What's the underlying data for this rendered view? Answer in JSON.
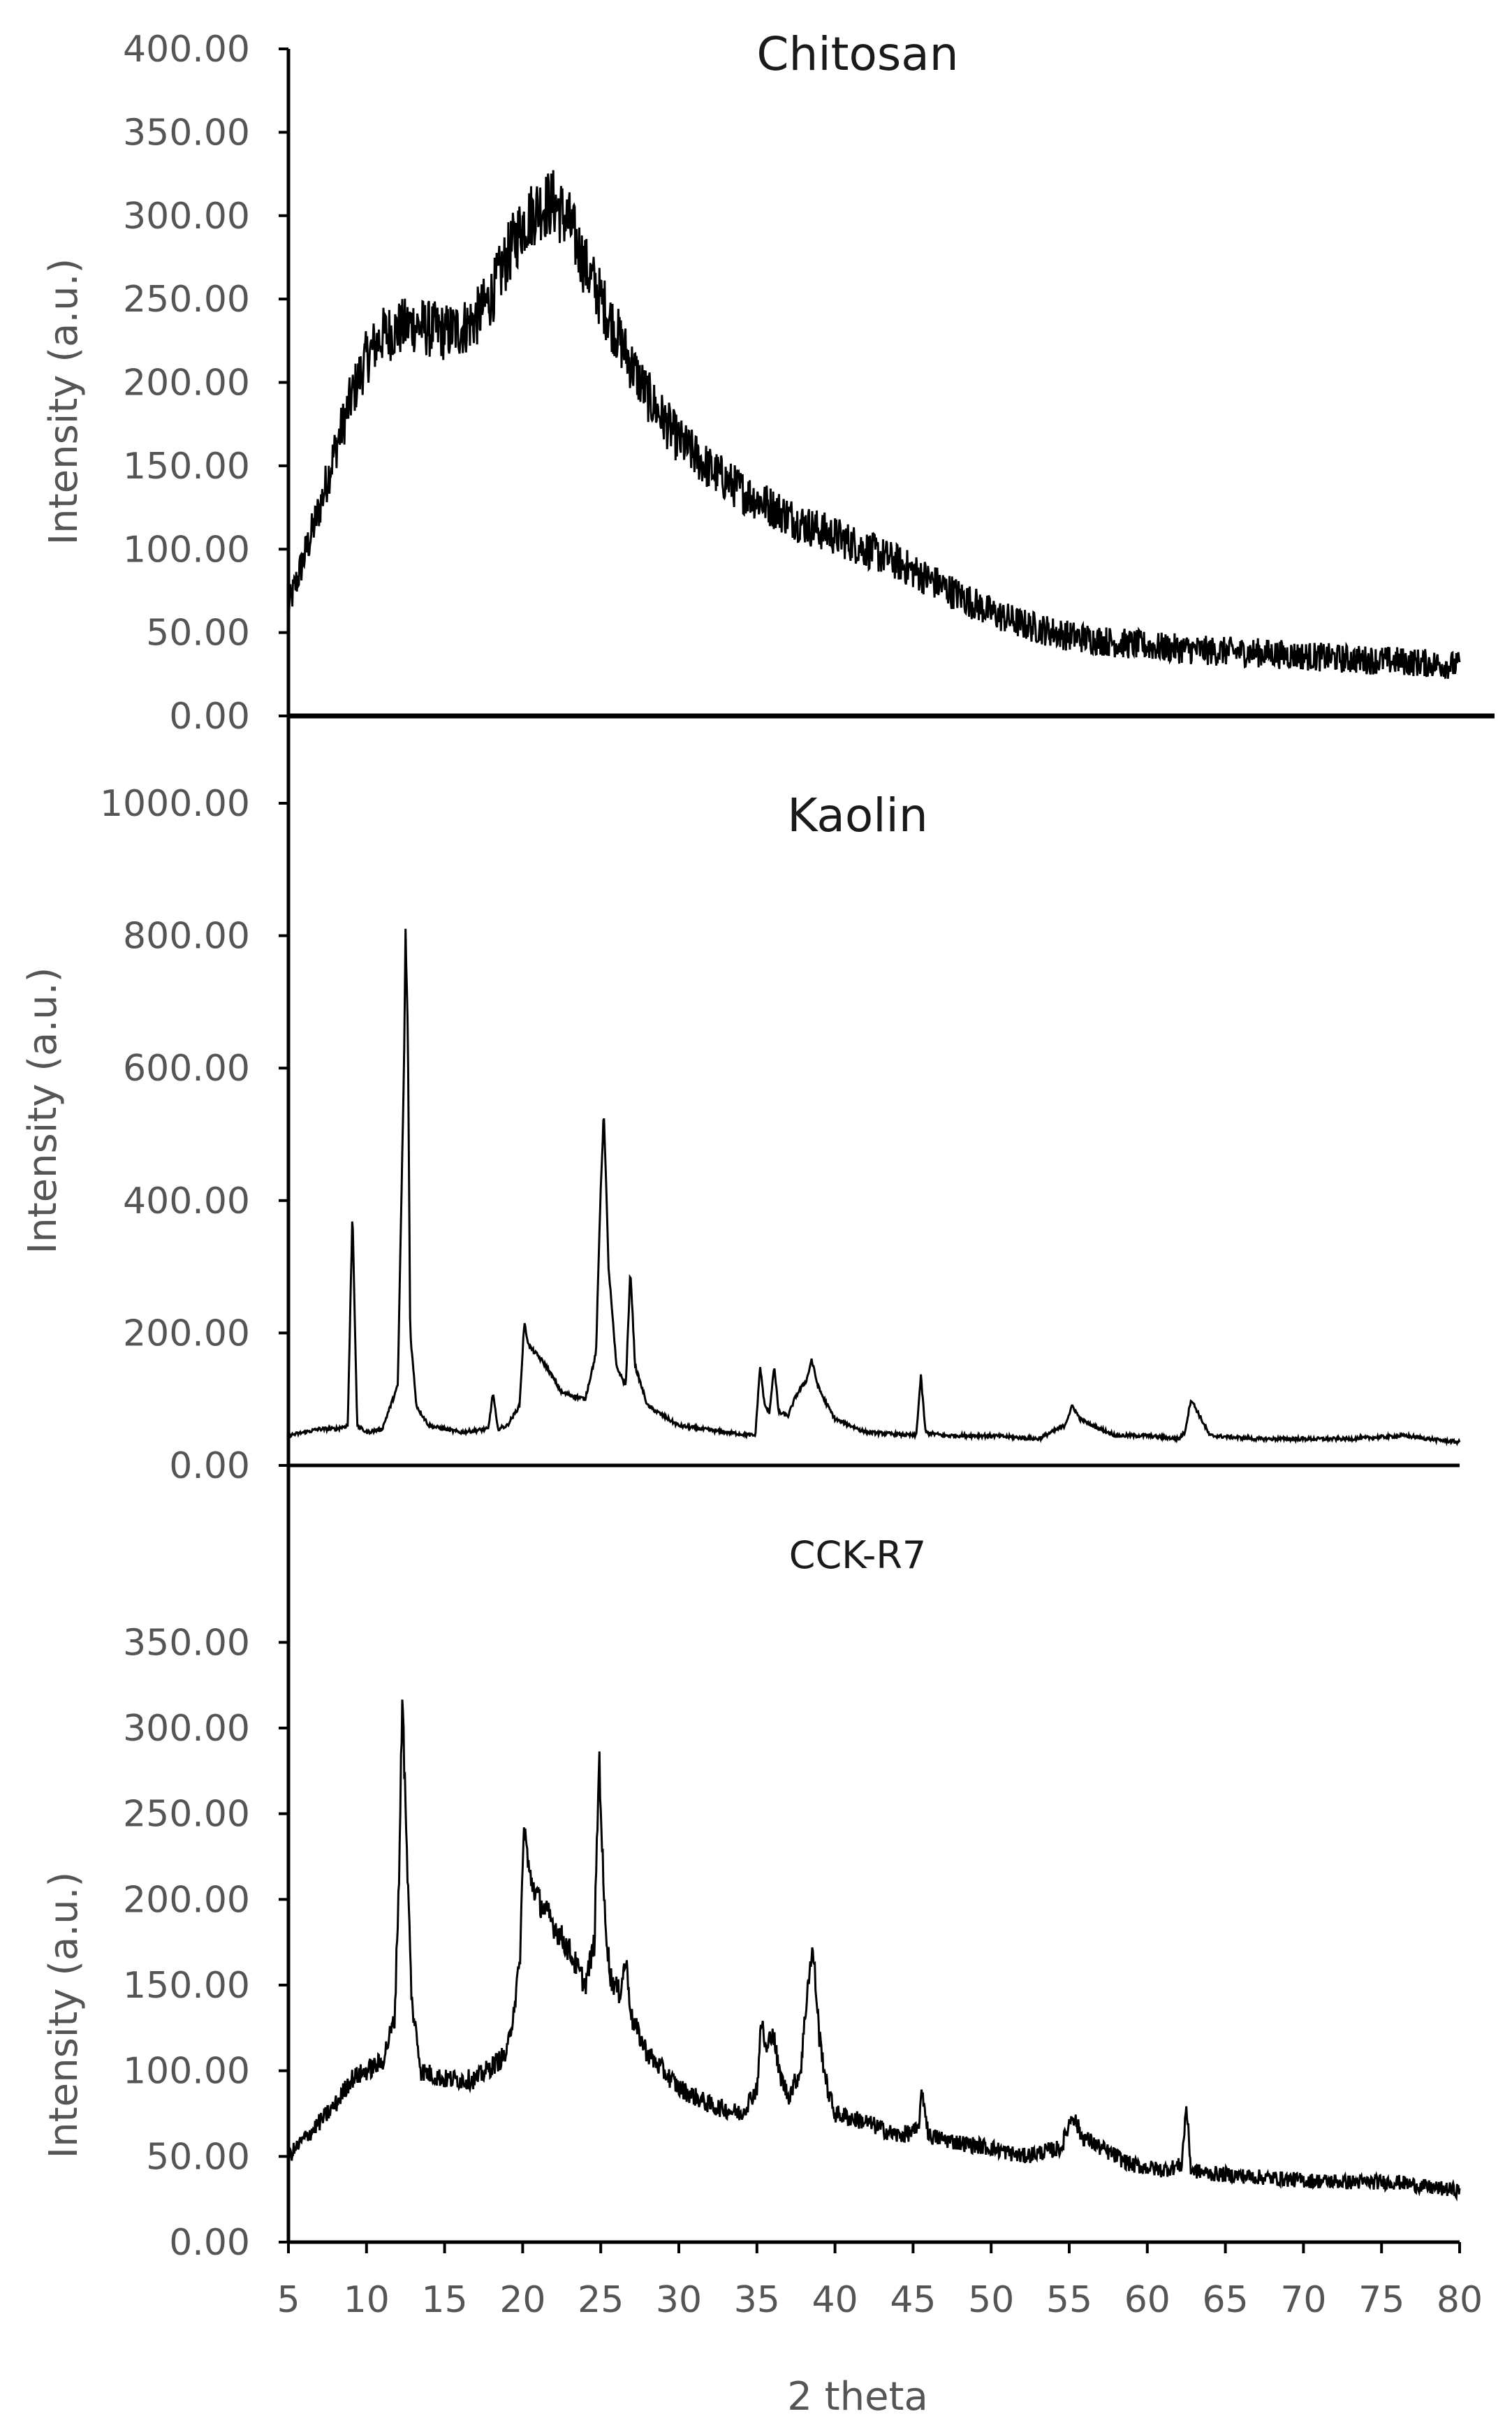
{
  "colors": {
    "trace": "#000000",
    "axis": "#000000",
    "text": "#555555"
  },
  "chart_data": [
    {
      "type": "line",
      "title": "Chitosan",
      "xlabel": "",
      "ylabel": "Intensity (a.u.)",
      "xlim": [
        5,
        80
      ],
      "ylim": [
        0,
        400
      ],
      "yticks": [
        "0.00",
        "50.00",
        "100.00",
        "150.00",
        "200.00",
        "250.00",
        "300.00",
        "350.00",
        "400.00"
      ],
      "noise": 18,
      "x": [
        5,
        6,
        7,
        8,
        9,
        10,
        11,
        12,
        13,
        14,
        15,
        16,
        17,
        18,
        19,
        20,
        21,
        22,
        23,
        24,
        25,
        26,
        27,
        28,
        29,
        30,
        32,
        34,
        36,
        38,
        40,
        42,
        44,
        46,
        48,
        50,
        52,
        55,
        58,
        61,
        64,
        67,
        70,
        73,
        76,
        80
      ],
      "y": [
        65,
        95,
        125,
        160,
        190,
        215,
        228,
        232,
        235,
        232,
        230,
        232,
        238,
        252,
        275,
        295,
        305,
        308,
        295,
        270,
        250,
        230,
        210,
        192,
        178,
        165,
        148,
        135,
        125,
        115,
        108,
        100,
        92,
        82,
        72,
        62,
        55,
        48,
        44,
        41,
        39,
        38,
        36,
        34,
        33,
        30
      ],
      "grid": false,
      "legend": "none"
    },
    {
      "type": "line",
      "title": "Kaolin",
      "xlabel": "",
      "ylabel": "Intensity (a.u.)",
      "xlim": [
        5,
        80
      ],
      "ylim": [
        0,
        1000
      ],
      "yticks": [
        "0.00",
        "200.00",
        "400.00",
        "600.00",
        "800.00",
        "1000.00"
      ],
      "noise": 6,
      "x": [
        5,
        6,
        7,
        8,
        8.8,
        9.1,
        9.4,
        10,
        11,
        12,
        12.4,
        12.5,
        12.65,
        12.8,
        13.2,
        14,
        16,
        17.8,
        18.1,
        18.4,
        19,
        19.8,
        20.1,
        20.4,
        21,
        21.5,
        22.5,
        24,
        24.7,
        25,
        25.2,
        25.5,
        26,
        26.6,
        26.9,
        27.2,
        28,
        30,
        33,
        34.9,
        35.2,
        35.5,
        35.8,
        36.1,
        36.4,
        37,
        37.5,
        38.2,
        38.5,
        38.9,
        39.3,
        40,
        42,
        45.2,
        45.5,
        45.8,
        47,
        50,
        53,
        54.7,
        55.2,
        55.7,
        56.5,
        57,
        58,
        60,
        62,
        62.4,
        62.8,
        64,
        67,
        70,
        73,
        76.5,
        78,
        80
      ],
      "y": [
        45,
        50,
        55,
        55,
        60,
        385,
        60,
        50,
        55,
        120,
        600,
        805,
        650,
        200,
        90,
        60,
        50,
        55,
        110,
        55,
        60,
        90,
        215,
        180,
        165,
        150,
        110,
        100,
        170,
        420,
        535,
        300,
        150,
        120,
        295,
        150,
        90,
        60,
        50,
        45,
        150,
        90,
        80,
        150,
        80,
        75,
        105,
        130,
        160,
        120,
        100,
        70,
        50,
        45,
        135,
        50,
        45,
        45,
        40,
        60,
        90,
        70,
        60,
        55,
        45,
        45,
        40,
        50,
        100,
        45,
        40,
        40,
        40,
        45,
        40,
        35
      ],
      "grid": false,
      "legend": "none"
    },
    {
      "type": "line",
      "title": "CCK-R7",
      "xlabel": "2 theta",
      "ylabel": "Intensity (a.u.)",
      "xlim": [
        5,
        80
      ],
      "ylim": [
        0,
        375
      ],
      "xticks": [
        "5",
        "10",
        "15",
        "20",
        "25",
        "30",
        "35",
        "40",
        "45",
        "50",
        "55",
        "60",
        "65",
        "70",
        "75",
        "80"
      ],
      "yticks": [
        "0.00",
        "50.00",
        "100.00",
        "150.00",
        "200.00",
        "250.00",
        "300.00",
        "350.00"
      ],
      "noise": 9,
      "x": [
        5,
        6,
        7,
        8,
        9,
        10,
        11,
        11.8,
        12.1,
        12.3,
        12.5,
        12.9,
        13.5,
        15,
        17,
        19,
        19.8,
        20.1,
        20.4,
        21,
        22,
        23,
        24,
        24.6,
        24.9,
        25.2,
        25.6,
        26.2,
        26.6,
        27,
        28,
        30,
        32,
        34,
        35,
        35.3,
        35.6,
        36,
        36.4,
        37,
        37.8,
        38.3,
        38.6,
        39,
        39.5,
        40,
        42,
        44,
        45.3,
        45.6,
        46,
        48,
        50,
        52,
        54.5,
        55.2,
        55.8,
        57,
        59,
        61,
        62.2,
        62.5,
        62.8,
        64,
        67,
        70,
        73,
        76,
        78,
        80
      ],
      "y": [
        50,
        60,
        70,
        80,
        95,
        100,
        105,
        130,
        220,
        325,
        250,
        140,
        100,
        95,
        95,
        110,
        160,
        245,
        215,
        200,
        185,
        170,
        150,
        175,
        285,
        200,
        155,
        145,
        165,
        130,
        110,
        90,
        80,
        75,
        90,
        130,
        110,
        125,
        100,
        85,
        100,
        155,
        170,
        120,
        90,
        75,
        70,
        62,
        65,
        88,
        62,
        58,
        55,
        50,
        55,
        75,
        62,
        55,
        45,
        42,
        45,
        80,
        42,
        40,
        38,
        36,
        35,
        35,
        32,
        30
      ],
      "grid": false,
      "legend": "none"
    }
  ]
}
